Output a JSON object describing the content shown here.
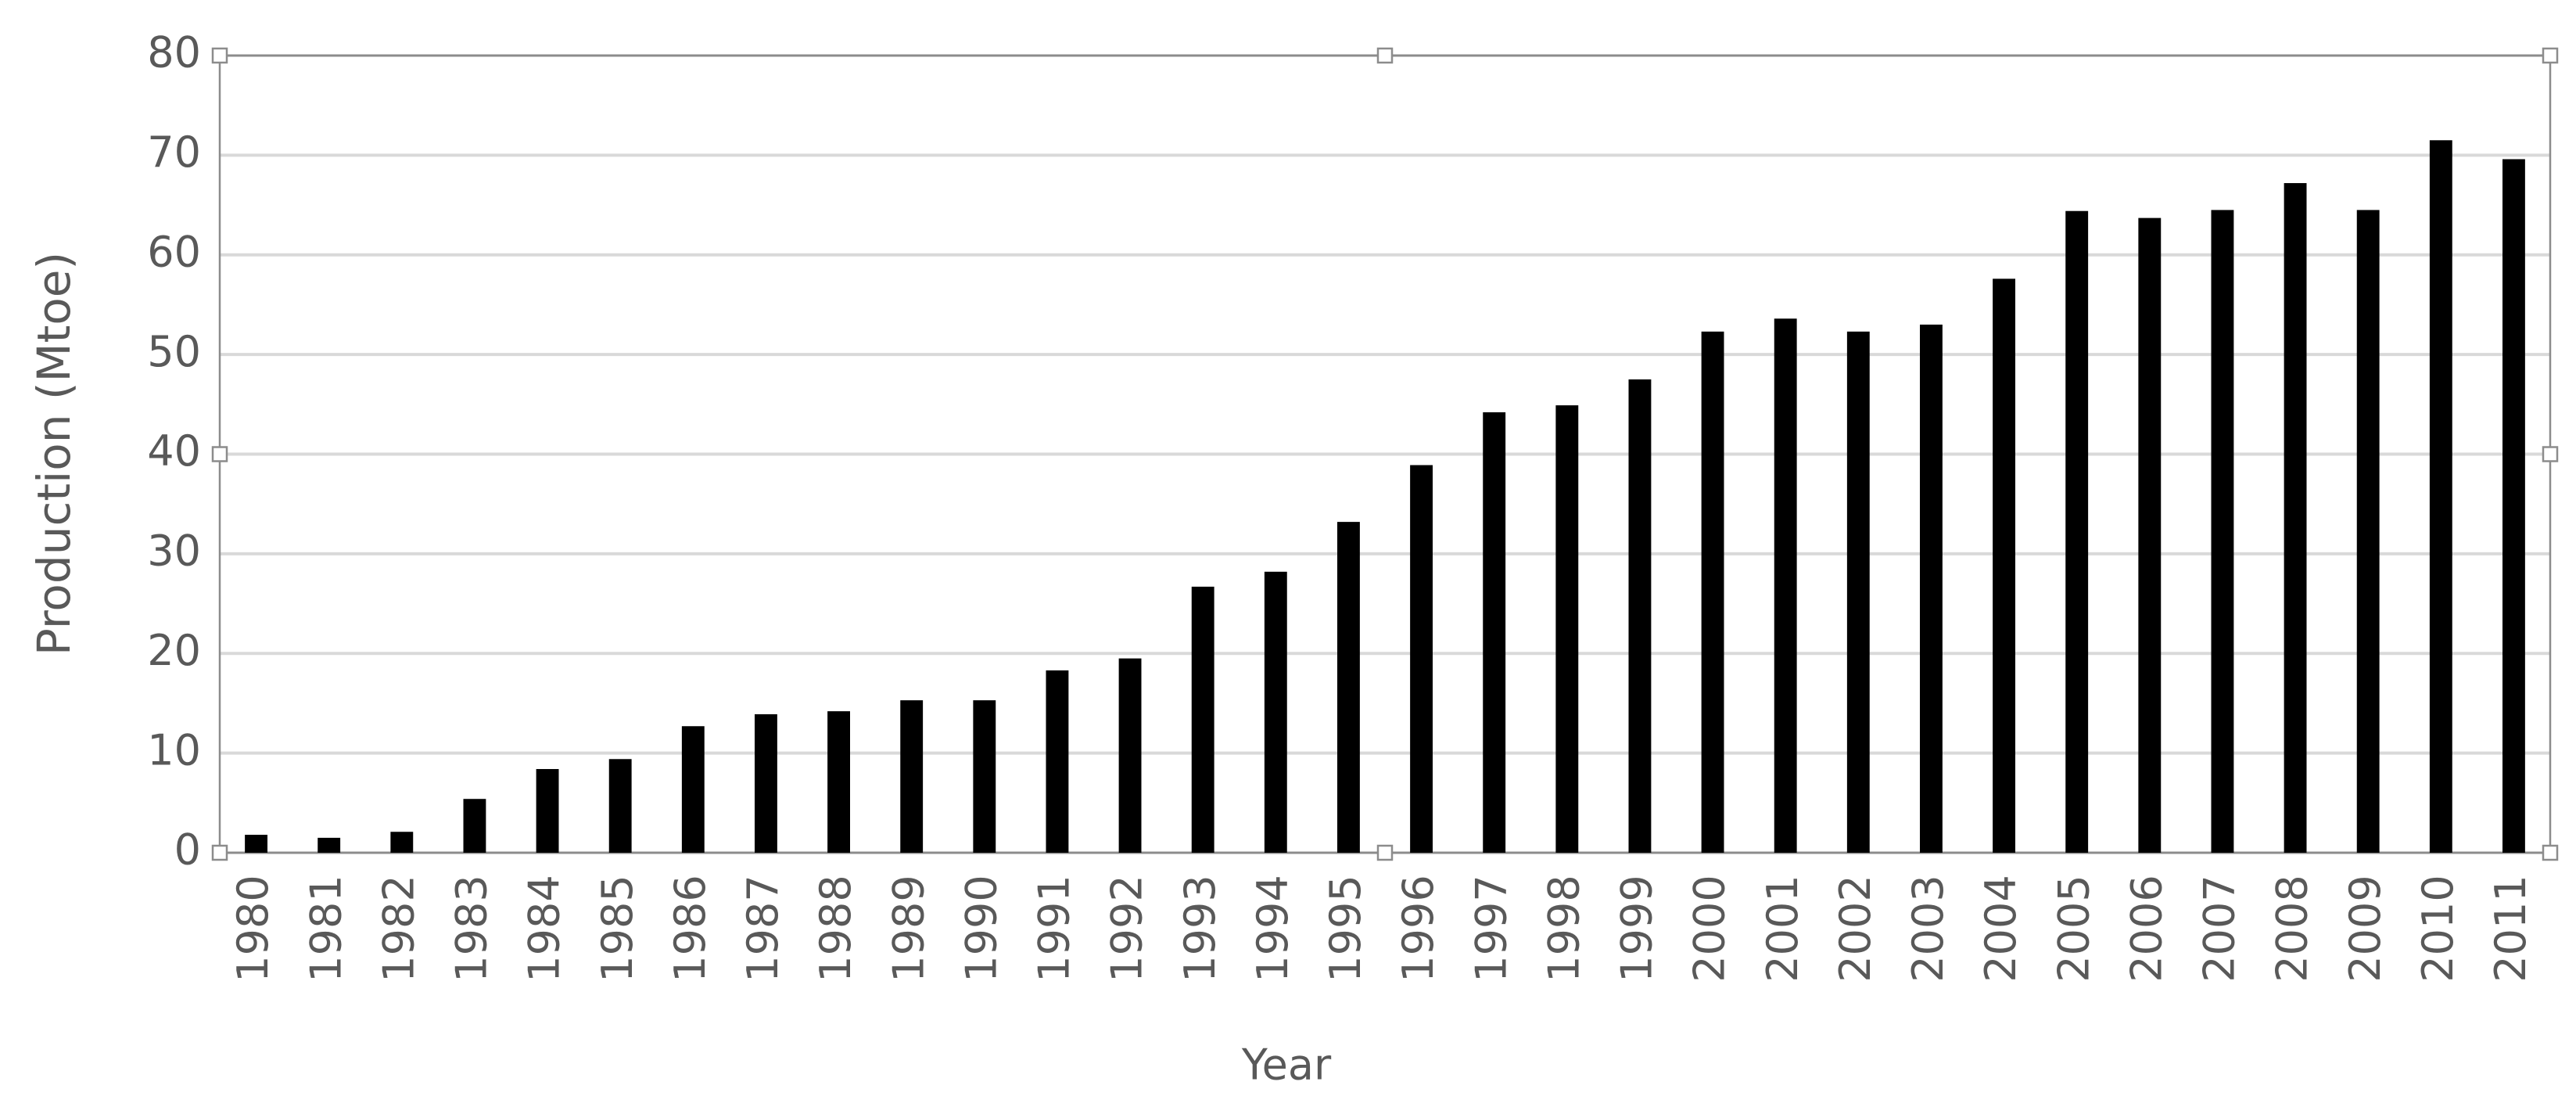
{
  "chart_data": {
    "type": "bar",
    "x_label": "Year",
    "y_label": "Production (Mtoe)",
    "categories": [
      "1980",
      "1981",
      "1982",
      "1983",
      "1984",
      "1985",
      "1986",
      "1987",
      "1988",
      "1989",
      "1990",
      "1991",
      "1992",
      "1993",
      "1994",
      "1995",
      "1996",
      "1997",
      "1998",
      "1999",
      "2000",
      "2001",
      "2002",
      "2003",
      "2004",
      "2005",
      "2006",
      "2007",
      "2008",
      "2009",
      "2010",
      "2011"
    ],
    "values": [
      1.8,
      1.5,
      2.1,
      5.4,
      8.4,
      9.4,
      12.7,
      13.9,
      14.2,
      15.3,
      15.3,
      18.3,
      19.5,
      26.7,
      28.2,
      33.2,
      38.9,
      44.2,
      44.9,
      47.5,
      52.3,
      53.6,
      52.3,
      53.0,
      57.6,
      64.4,
      63.7,
      64.5,
      67.2,
      64.5,
      71.5,
      69.6
    ],
    "color": "#000000",
    "ylim": [
      0,
      80
    ],
    "yticks": [
      0,
      10,
      20,
      30,
      40,
      50,
      60,
      70,
      80
    ],
    "grid": true
  }
}
